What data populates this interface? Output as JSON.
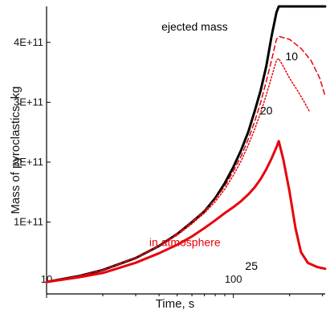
{
  "chart_data": {
    "type": "line",
    "xlabel": "Time, s",
    "ylabel": "Mass of pyroclastics, kg",
    "x_scale": "log",
    "xlim": [
      10,
      310
    ],
    "ylim": [
      -20000000000,
      460000000000
    ],
    "x_ticks": [
      {
        "value": 10,
        "label": "10"
      },
      {
        "value": 100,
        "label": "100"
      }
    ],
    "y_ticks": [
      {
        "value": 100000000000,
        "label": "1E+11"
      },
      {
        "value": 200000000000,
        "label": "2E+11"
      },
      {
        "value": 300000000000,
        "label": "3E+11"
      },
      {
        "value": 400000000000,
        "label": "4E+11"
      }
    ],
    "colors": {
      "ejected": "#000000",
      "atmosphere": "#e8000b"
    },
    "series": [
      {
        "name": "ejected mass",
        "color": "#000000",
        "dash": "solid",
        "width": 3,
        "x": [
          10,
          15,
          20,
          30,
          40,
          50,
          60,
          70,
          80,
          90,
          100,
          110,
          120,
          130,
          140,
          150,
          160,
          170,
          175,
          200,
          250,
          310
        ],
        "y": [
          0,
          10000000000,
          20000000000,
          40000000000,
          60000000000,
          80000000000,
          100000000000,
          118000000000,
          140000000000,
          165000000000,
          192000000000,
          220000000000,
          250000000000,
          285000000000,
          320000000000,
          360000000000,
          410000000000,
          450000000000,
          460000000000,
          460000000000,
          460000000000,
          460000000000
        ]
      },
      {
        "name": "10",
        "color": "#e8000b",
        "dash": "dashed",
        "width": 1.5,
        "x": [
          10,
          15,
          20,
          30,
          40,
          50,
          60,
          70,
          80,
          90,
          100,
          110,
          120,
          130,
          140,
          150,
          160,
          170,
          175,
          200,
          230,
          260,
          290,
          310
        ],
        "y": [
          0,
          10000000000,
          20000000000,
          40000000000,
          60000000000,
          80000000000,
          100000000000,
          118000000000,
          138000000000,
          160000000000,
          185000000000,
          210000000000,
          238000000000,
          268000000000,
          300000000000,
          335000000000,
          370000000000,
          405000000000,
          410000000000,
          405000000000,
          390000000000,
          370000000000,
          340000000000,
          310000000000
        ]
      },
      {
        "name": "20",
        "color": "#e8000b",
        "dash": "dotted",
        "width": 1.5,
        "x": [
          10,
          15,
          20,
          30,
          40,
          50,
          60,
          70,
          80,
          90,
          100,
          110,
          120,
          130,
          140,
          150,
          160,
          170,
          175,
          185,
          200,
          220,
          240,
          255
        ],
        "y": [
          0,
          10000000000,
          20000000000,
          40000000000,
          60000000000,
          78000000000,
          97000000000,
          115000000000,
          134000000000,
          155000000000,
          178000000000,
          202000000000,
          228000000000,
          255000000000,
          283000000000,
          312000000000,
          342000000000,
          370000000000,
          373000000000,
          360000000000,
          340000000000,
          320000000000,
          300000000000,
          285000000000
        ]
      },
      {
        "name": "in atmosphere",
        "color": "#e8000b",
        "dash": "solid",
        "width": 3,
        "x": [
          10,
          15,
          20,
          30,
          40,
          50,
          60,
          70,
          80,
          90,
          100,
          110,
          120,
          130,
          140,
          150,
          160,
          170,
          175,
          185,
          200,
          215,
          230,
          250,
          280,
          310
        ],
        "y": [
          0,
          8000000000,
          15000000000,
          32000000000,
          48000000000,
          62000000000,
          76000000000,
          90000000000,
          103000000000,
          115000000000,
          125000000000,
          135000000000,
          146000000000,
          158000000000,
          172000000000,
          188000000000,
          206000000000,
          225000000000,
          235000000000,
          205000000000,
          150000000000,
          90000000000,
          50000000000,
          32000000000,
          25000000000,
          22000000000
        ]
      }
    ],
    "annotations": [
      {
        "text": "ejected mass",
        "color": "#000000",
        "x": 62,
        "y": 420000000000
      },
      {
        "text": "10",
        "color": "#000000",
        "x": 205,
        "y": 370000000000
      },
      {
        "text": "20",
        "color": "#000000",
        "x": 150,
        "y": 280000000000
      },
      {
        "text": "in atmosphere",
        "color": "#e8000b",
        "x": 55,
        "y": 60000000000
      },
      {
        "text": "25",
        "color": "#000000",
        "x": 125,
        "y": 20000000000
      }
    ]
  }
}
